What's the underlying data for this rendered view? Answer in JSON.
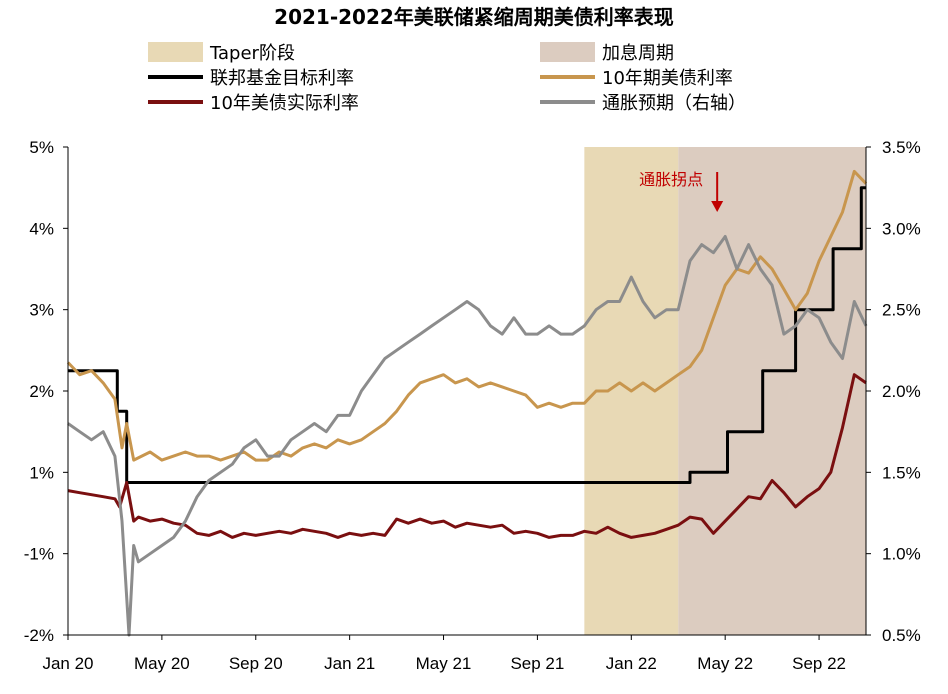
{
  "chart_data": {
    "type": "line",
    "title": "2021-2022年美联储紧缩周期美债利率表现",
    "x_ticks": [
      "Jan 20",
      "May 20",
      "Sep 20",
      "Jan 21",
      "May 21",
      "Sep 21",
      "Jan 22",
      "May 22",
      "Sep 22"
    ],
    "x_tick_dates": [
      "2020-01",
      "2020-05",
      "2020-09",
      "2021-01",
      "2021-05",
      "2021-09",
      "2022-01",
      "2022-05",
      "2022-09"
    ],
    "x_range": [
      "2020-01",
      "2022-11"
    ],
    "y_left_ticks": [
      "5%",
      "4%",
      "3%",
      "2%",
      "1%",
      "-1%",
      "-2%"
    ],
    "y_right_ticks": [
      "3.5%",
      "3.0%",
      "2.5%",
      "2.0%",
      "1.5%",
      "1.0%",
      "0.5%"
    ],
    "y_right_range": [
      0.5,
      3.5
    ],
    "legend": [
      {
        "label": "Taper阶段",
        "color": "#e8d9b5",
        "kind": "area"
      },
      {
        "label": "加息周期",
        "color": "#dcccc0",
        "kind": "area"
      },
      {
        "label": "联邦基金目标利率",
        "color": "#000000",
        "kind": "line"
      },
      {
        "label": "10年期美债利率",
        "color": "#c8964e",
        "kind": "line"
      },
      {
        "label": "10年美债实际利率",
        "color": "#7a0f10",
        "kind": "line"
      },
      {
        "label": "通胀预期（右轴）",
        "color": "#8c8c8c",
        "kind": "line"
      }
    ],
    "shaded_periods": [
      {
        "name": "Taper阶段",
        "start": "2021-11",
        "end": "2022-03",
        "color": "#e8d9b5"
      },
      {
        "name": "加息周期",
        "start": "2022-03",
        "end": "2022-11",
        "color": "#dcccc0"
      }
    ],
    "annotation": {
      "text": "通胀拐点",
      "date": "2022-05",
      "color": "#c00000"
    },
    "series": [
      {
        "name": "联邦基金目标利率",
        "color": "#000000",
        "points": [
          [
            0,
            2.25
          ],
          [
            2.1,
            2.25
          ],
          [
            2.1,
            1.75
          ],
          [
            2.5,
            1.75
          ],
          [
            2.5,
            0.75
          ],
          [
            26.5,
            0.75
          ],
          [
            26.5,
            1.0
          ],
          [
            28.1,
            1.0
          ],
          [
            28.1,
            1.5
          ],
          [
            29.6,
            1.5
          ],
          [
            29.6,
            2.25
          ],
          [
            31.0,
            2.25
          ],
          [
            31.0,
            3.0
          ],
          [
            32.6,
            3.0
          ],
          [
            32.6,
            3.75
          ],
          [
            33.8,
            3.75
          ],
          [
            33.8,
            4.5
          ],
          [
            34.0,
            4.5
          ]
        ]
      },
      {
        "name": "10年期美债利率",
        "color": "#c8964e",
        "points": [
          [
            0,
            2.35
          ],
          [
            0.5,
            2.2
          ],
          [
            1,
            2.25
          ],
          [
            1.5,
            2.1
          ],
          [
            2,
            1.9
          ],
          [
            2.3,
            1.3
          ],
          [
            2.5,
            1.6
          ],
          [
            2.8,
            1.15
          ],
          [
            3.5,
            1.25
          ],
          [
            4,
            1.15
          ],
          [
            4.5,
            1.2
          ],
          [
            5,
            1.25
          ],
          [
            5.5,
            1.2
          ],
          [
            6,
            1.2
          ],
          [
            6.5,
            1.15
          ],
          [
            7,
            1.2
          ],
          [
            7.5,
            1.25
          ],
          [
            8,
            1.15
          ],
          [
            8.5,
            1.15
          ],
          [
            9,
            1.25
          ],
          [
            9.5,
            1.2
          ],
          [
            10,
            1.3
          ],
          [
            10.5,
            1.35
          ],
          [
            11,
            1.3
          ],
          [
            11.5,
            1.4
          ],
          [
            12,
            1.35
          ],
          [
            12.5,
            1.4
          ],
          [
            13,
            1.5
          ],
          [
            13.5,
            1.6
          ],
          [
            14,
            1.75
          ],
          [
            14.5,
            1.95
          ],
          [
            15,
            2.1
          ],
          [
            15.5,
            2.15
          ],
          [
            16,
            2.2
          ],
          [
            16.5,
            2.1
          ],
          [
            17,
            2.15
          ],
          [
            17.5,
            2.05
          ],
          [
            18,
            2.1
          ],
          [
            18.5,
            2.05
          ],
          [
            19,
            2.0
          ],
          [
            19.5,
            1.95
          ],
          [
            20,
            1.8
          ],
          [
            20.5,
            1.85
          ],
          [
            21,
            1.8
          ],
          [
            21.5,
            1.85
          ],
          [
            22,
            1.85
          ],
          [
            22.5,
            2.0
          ],
          [
            23,
            2.0
          ],
          [
            23.5,
            2.1
          ],
          [
            24,
            2.0
          ],
          [
            24.5,
            2.1
          ],
          [
            25,
            2.0
          ],
          [
            25.5,
            2.1
          ],
          [
            26,
            2.2
          ],
          [
            26.5,
            2.3
          ],
          [
            27,
            2.5
          ],
          [
            27.5,
            2.9
          ],
          [
            28,
            3.3
          ],
          [
            28.5,
            3.5
          ],
          [
            29,
            3.45
          ],
          [
            29.5,
            3.65
          ],
          [
            30,
            3.5
          ],
          [
            30.5,
            3.25
          ],
          [
            31,
            3.0
          ],
          [
            31.5,
            3.2
          ],
          [
            32,
            3.6
          ],
          [
            32.5,
            3.9
          ],
          [
            33,
            4.2
          ],
          [
            33.5,
            4.7
          ],
          [
            34,
            4.55
          ]
        ]
      },
      {
        "name": "10年美债实际利率",
        "color": "#7a0f10",
        "points": [
          [
            0,
            0.55
          ],
          [
            0.5,
            0.5
          ],
          [
            1,
            0.45
          ],
          [
            1.5,
            0.4
          ],
          [
            2,
            0.35
          ],
          [
            2.2,
            0.15
          ],
          [
            2.5,
            0.75
          ],
          [
            2.8,
            -0.2
          ],
          [
            3,
            -0.1
          ],
          [
            3.5,
            -0.2
          ],
          [
            4,
            -0.15
          ],
          [
            4.5,
            -0.25
          ],
          [
            5,
            -0.3
          ],
          [
            5.5,
            -0.5
          ],
          [
            6,
            -0.55
          ],
          [
            6.5,
            -0.45
          ],
          [
            7,
            -0.6
          ],
          [
            7.5,
            -0.5
          ],
          [
            8,
            -0.55
          ],
          [
            8.5,
            -0.5
          ],
          [
            9,
            -0.45
          ],
          [
            9.5,
            -0.5
          ],
          [
            10,
            -0.4
          ],
          [
            10.5,
            -0.45
          ],
          [
            11,
            -0.5
          ],
          [
            11.5,
            -0.6
          ],
          [
            12,
            -0.5
          ],
          [
            12.5,
            -0.55
          ],
          [
            13,
            -0.5
          ],
          [
            13.5,
            -0.55
          ],
          [
            14,
            -0.15
          ],
          [
            14.5,
            -0.25
          ],
          [
            15,
            -0.15
          ],
          [
            15.5,
            -0.25
          ],
          [
            16,
            -0.2
          ],
          [
            16.5,
            -0.35
          ],
          [
            17,
            -0.25
          ],
          [
            17.5,
            -0.3
          ],
          [
            18,
            -0.35
          ],
          [
            18.5,
            -0.3
          ],
          [
            19,
            -0.5
          ],
          [
            19.5,
            -0.45
          ],
          [
            20,
            -0.5
          ],
          [
            20.5,
            -0.6
          ],
          [
            21,
            -0.55
          ],
          [
            21.5,
            -0.55
          ],
          [
            22,
            -0.45
          ],
          [
            22.5,
            -0.5
          ],
          [
            23,
            -0.35
          ],
          [
            23.5,
            -0.5
          ],
          [
            24,
            -0.6
          ],
          [
            24.5,
            -0.55
          ],
          [
            25,
            -0.5
          ],
          [
            25.5,
            -0.4
          ],
          [
            26,
            -0.3
          ],
          [
            26.5,
            -0.1
          ],
          [
            27,
            -0.15
          ],
          [
            27.5,
            -0.5
          ],
          [
            28,
            -0.2
          ],
          [
            28.5,
            0.1
          ],
          [
            29,
            0.4
          ],
          [
            29.5,
            0.35
          ],
          [
            30,
            0.8
          ],
          [
            30.5,
            0.5
          ],
          [
            31,
            0.15
          ],
          [
            31.5,
            0.4
          ],
          [
            32,
            0.6
          ],
          [
            32.5,
            1.0
          ],
          [
            33,
            1.55
          ],
          [
            33.5,
            2.2
          ],
          [
            34,
            2.1
          ]
        ]
      },
      {
        "name": "通胀预期（右轴）",
        "color": "#8c8c8c",
        "points": [
          [
            0,
            1.8
          ],
          [
            0.5,
            1.75
          ],
          [
            1,
            1.7
          ],
          [
            1.5,
            1.75
          ],
          [
            2,
            1.6
          ],
          [
            2.3,
            1.2
          ],
          [
            2.6,
            0.5
          ],
          [
            2.8,
            1.05
          ],
          [
            3,
            0.95
          ],
          [
            3.5,
            1.0
          ],
          [
            4,
            1.05
          ],
          [
            4.5,
            1.1
          ],
          [
            5,
            1.2
          ],
          [
            5.5,
            1.35
          ],
          [
            6,
            1.45
          ],
          [
            6.5,
            1.5
          ],
          [
            7,
            1.55
          ],
          [
            7.5,
            1.65
          ],
          [
            8,
            1.7
          ],
          [
            8.5,
            1.6
          ],
          [
            9,
            1.6
          ],
          [
            9.5,
            1.7
          ],
          [
            10,
            1.75
          ],
          [
            10.5,
            1.8
          ],
          [
            11,
            1.75
          ],
          [
            11.5,
            1.85
          ],
          [
            12,
            1.85
          ],
          [
            12.5,
            2.0
          ],
          [
            13,
            2.1
          ],
          [
            13.5,
            2.2
          ],
          [
            14,
            2.25
          ],
          [
            14.5,
            2.3
          ],
          [
            15,
            2.35
          ],
          [
            15.5,
            2.4
          ],
          [
            16,
            2.45
          ],
          [
            16.5,
            2.5
          ],
          [
            17,
            2.55
          ],
          [
            17.5,
            2.5
          ],
          [
            18,
            2.4
          ],
          [
            18.5,
            2.35
          ],
          [
            19,
            2.45
          ],
          [
            19.5,
            2.35
          ],
          [
            20,
            2.35
          ],
          [
            20.5,
            2.4
          ],
          [
            21,
            2.35
          ],
          [
            21.5,
            2.35
          ],
          [
            22,
            2.4
          ],
          [
            22.5,
            2.5
          ],
          [
            23,
            2.55
          ],
          [
            23.5,
            2.55
          ],
          [
            24,
            2.7
          ],
          [
            24.5,
            2.55
          ],
          [
            25,
            2.45
          ],
          [
            25.5,
            2.5
          ],
          [
            26,
            2.5
          ],
          [
            26.5,
            2.8
          ],
          [
            27,
            2.9
          ],
          [
            27.5,
            2.85
          ],
          [
            28,
            2.95
          ],
          [
            28.5,
            2.75
          ],
          [
            29,
            2.9
          ],
          [
            29.5,
            2.75
          ],
          [
            30,
            2.65
          ],
          [
            30.5,
            2.35
          ],
          [
            31,
            2.4
          ],
          [
            31.5,
            2.5
          ],
          [
            32,
            2.45
          ],
          [
            32.5,
            2.3
          ],
          [
            33,
            2.2
          ],
          [
            33.5,
            2.55
          ],
          [
            34,
            2.4
          ]
        ]
      }
    ]
  }
}
